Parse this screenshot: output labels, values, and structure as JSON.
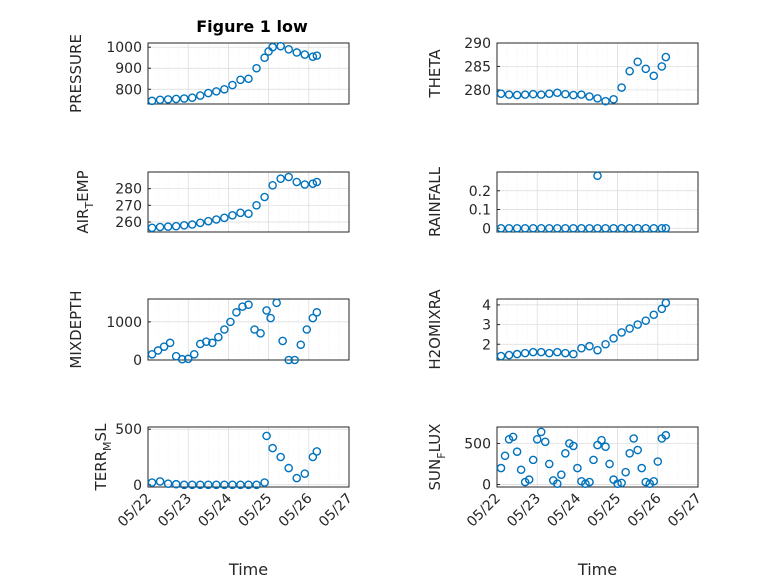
{
  "figure": {
    "title": "Figure 1 low",
    "xlabel": "Time",
    "marker_color": "#0072BD",
    "xtick_labels": [
      "05/22",
      "05/23",
      "05/24",
      "05/25",
      "05/26",
      "05/27"
    ]
  },
  "chart_data": [
    {
      "type": "scatter",
      "name": "pressure",
      "ylabel": "PRESSURE",
      "xlim": [
        0,
        5
      ],
      "ylim": [
        730,
        1020
      ],
      "yticks": [
        800,
        900,
        1000
      ],
      "ytick_labels": [
        "800",
        "900",
        "1000"
      ],
      "grid": true,
      "title": "Figure 1 low",
      "x": [
        0.1,
        0.3,
        0.5,
        0.7,
        0.9,
        1.1,
        1.3,
        1.5,
        1.7,
        1.9,
        2.1,
        2.3,
        2.5,
        2.7,
        2.9,
        3.0,
        3.1,
        3.3,
        3.5,
        3.7,
        3.9,
        4.1,
        4.2
      ],
      "y": [
        745,
        750,
        752,
        754,
        756,
        760,
        770,
        782,
        790,
        800,
        820,
        845,
        850,
        900,
        950,
        980,
        1000,
        1005,
        990,
        975,
        965,
        955,
        960
      ]
    },
    {
      "type": "scatter",
      "name": "theta",
      "ylabel": "THETA",
      "xlim": [
        0,
        5
      ],
      "ylim": [
        277,
        290
      ],
      "yticks": [
        280,
        285,
        290
      ],
      "ytick_labels": [
        "280",
        "285",
        "290"
      ],
      "grid": true,
      "x": [
        0.1,
        0.3,
        0.5,
        0.7,
        0.9,
        1.1,
        1.3,
        1.5,
        1.7,
        1.9,
        2.1,
        2.3,
        2.5,
        2.7,
        2.9,
        3.1,
        3.3,
        3.5,
        3.7,
        3.9,
        4.1,
        4.2
      ],
      "y": [
        279.2,
        279.0,
        278.9,
        279.0,
        279.1,
        279.0,
        279.2,
        279.4,
        279.1,
        278.9,
        279.0,
        278.6,
        278.2,
        277.6,
        278.0,
        280.5,
        284.0,
        286.0,
        284.5,
        283.0,
        285.0,
        287.0
      ]
    },
    {
      "type": "scatter",
      "name": "air_temp",
      "ylabel": "AIR_TEMP",
      "ylabel_main": "AIR",
      "ylabel_sub": "T",
      "ylabel_rest": "EMP",
      "xlim": [
        0,
        5
      ],
      "ylim": [
        254,
        290
      ],
      "yticks": [
        260,
        270,
        280
      ],
      "ytick_labels": [
        "260",
        "270",
        "280"
      ],
      "grid": true,
      "x": [
        0.1,
        0.3,
        0.5,
        0.7,
        0.9,
        1.1,
        1.3,
        1.5,
        1.7,
        1.9,
        2.1,
        2.3,
        2.5,
        2.7,
        2.9,
        3.1,
        3.3,
        3.5,
        3.7,
        3.9,
        4.1,
        4.2
      ],
      "y": [
        256.5,
        257.0,
        257.2,
        257.5,
        258.0,
        258.5,
        259.5,
        260.5,
        261.5,
        262.5,
        264.0,
        265.5,
        265.0,
        270.0,
        275.0,
        282.0,
        286.0,
        287.0,
        284.0,
        282.5,
        283.0,
        284.0
      ]
    },
    {
      "type": "scatter",
      "name": "rainfall",
      "ylabel": "RAINFALL",
      "xlim": [
        0,
        5
      ],
      "ylim": [
        -0.02,
        0.3
      ],
      "yticks": [
        0,
        0.1,
        0.2
      ],
      "ytick_labels": [
        "0",
        "0.1",
        "0.2"
      ],
      "grid": true,
      "x": [
        0.1,
        0.3,
        0.5,
        0.7,
        0.9,
        1.1,
        1.3,
        1.5,
        1.7,
        1.9,
        2.1,
        2.3,
        2.5,
        2.7,
        2.9,
        3.1,
        3.3,
        3.5,
        3.7,
        3.9,
        4.1,
        4.2,
        2.5
      ],
      "y": [
        0,
        0,
        0,
        0,
        0,
        0,
        0,
        0,
        0,
        0,
        0,
        0,
        0,
        0,
        0,
        0,
        0,
        0,
        0,
        0,
        0,
        0,
        0.28
      ]
    },
    {
      "type": "scatter",
      "name": "mixdepth",
      "ylabel": "MIXDEPTH",
      "xlim": [
        0,
        5
      ],
      "ylim": [
        0,
        1600
      ],
      "yticks": [
        0,
        1000
      ],
      "ytick_labels": [
        "0",
        "1000"
      ],
      "grid": true,
      "x": [
        0.1,
        0.25,
        0.4,
        0.55,
        0.7,
        0.85,
        1.0,
        1.15,
        1.3,
        1.45,
        1.6,
        1.75,
        1.9,
        2.05,
        2.2,
        2.35,
        2.5,
        2.65,
        2.8,
        2.95,
        3.05,
        3.2,
        3.35,
        3.5,
        3.65,
        3.8,
        3.95,
        4.1,
        4.2
      ],
      "y": [
        150,
        250,
        350,
        450,
        100,
        20,
        30,
        150,
        420,
        480,
        450,
        600,
        800,
        1000,
        1250,
        1400,
        1450,
        800,
        700,
        1300,
        1100,
        1500,
        500,
        0,
        0,
        400,
        800,
        1100,
        1250
      ]
    },
    {
      "type": "scatter",
      "name": "h2omixra",
      "ylabel": "H2OMIXRA",
      "xlim": [
        0,
        5
      ],
      "ylim": [
        1.2,
        4.3
      ],
      "yticks": [
        2,
        3,
        4
      ],
      "ytick_labels": [
        "2",
        "3",
        "4"
      ],
      "grid": true,
      "x": [
        0.1,
        0.3,
        0.5,
        0.7,
        0.9,
        1.1,
        1.3,
        1.5,
        1.7,
        1.9,
        2.1,
        2.3,
        2.5,
        2.7,
        2.9,
        3.1,
        3.3,
        3.5,
        3.7,
        3.9,
        4.1,
        4.2
      ],
      "y": [
        1.4,
        1.45,
        1.5,
        1.55,
        1.6,
        1.6,
        1.55,
        1.6,
        1.55,
        1.5,
        1.8,
        1.9,
        1.7,
        2.0,
        2.3,
        2.6,
        2.8,
        3.0,
        3.2,
        3.5,
        3.8,
        4.1
      ]
    },
    {
      "type": "scatter",
      "name": "terr_msl",
      "ylabel": "TERR_MSL",
      "ylabel_main": "TERR",
      "ylabel_sub": "M",
      "ylabel_rest": "SL",
      "xlim": [
        0,
        5
      ],
      "ylim": [
        -20,
        520
      ],
      "yticks": [
        0,
        500
      ],
      "ytick_labels": [
        "0",
        "500"
      ],
      "grid": true,
      "x": [
        0.1,
        0.3,
        0.5,
        0.7,
        0.9,
        1.1,
        1.3,
        1.5,
        1.7,
        1.9,
        2.1,
        2.3,
        2.5,
        2.7,
        2.9,
        2.95,
        3.1,
        3.3,
        3.5,
        3.7,
        3.9,
        4.1,
        4.2
      ],
      "y": [
        20,
        30,
        10,
        5,
        0,
        0,
        0,
        0,
        0,
        0,
        0,
        0,
        0,
        0,
        20,
        440,
        330,
        250,
        150,
        60,
        100,
        250,
        300
      ]
    },
    {
      "type": "scatter",
      "name": "sun_flux",
      "ylabel": "SUN_FLUX",
      "ylabel_main": "SUN",
      "ylabel_sub": "F",
      "ylabel_rest": "LUX",
      "xlim": [
        0,
        5
      ],
      "ylim": [
        -30,
        700
      ],
      "yticks": [
        0,
        500
      ],
      "ytick_labels": [
        "0",
        "500"
      ],
      "grid": true,
      "x": [
        0.1,
        0.2,
        0.3,
        0.4,
        0.5,
        0.6,
        0.7,
        0.8,
        0.9,
        1.0,
        1.1,
        1.2,
        1.3,
        1.4,
        1.5,
        1.6,
        1.7,
        1.8,
        1.9,
        2.0,
        2.1,
        2.2,
        2.3,
        2.4,
        2.5,
        2.6,
        2.7,
        2.8,
        2.9,
        3.0,
        3.1,
        3.2,
        3.3,
        3.4,
        3.5,
        3.6,
        3.7,
        3.8,
        3.9,
        4.0,
        4.1,
        4.2
      ],
      "y": [
        200,
        350,
        550,
        580,
        400,
        180,
        30,
        60,
        300,
        550,
        640,
        520,
        250,
        50,
        10,
        120,
        380,
        500,
        470,
        200,
        40,
        10,
        30,
        300,
        480,
        540,
        460,
        250,
        60,
        10,
        20,
        150,
        380,
        560,
        420,
        200,
        30,
        10,
        40,
        280,
        560,
        600
      ]
    }
  ]
}
